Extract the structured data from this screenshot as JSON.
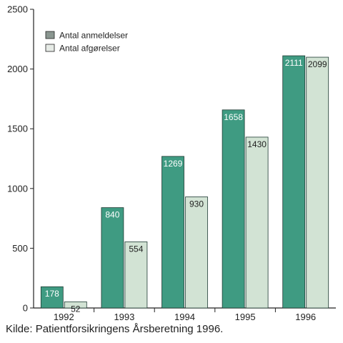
{
  "chart_data": {
    "type": "bar",
    "categories": [
      "1992",
      "1993",
      "1994",
      "1995",
      "1996"
    ],
    "series": [
      {
        "name": "Antal anmeldelser",
        "values": [
          178,
          840,
          1269,
          1658,
          2111
        ],
        "color": "#3f9b82",
        "label_color": "#ffffff"
      },
      {
        "name": "Antal afgørelser",
        "values": [
          52,
          554,
          930,
          1430,
          2099
        ],
        "color": "#d2e3d4",
        "label_color": "#222222"
      }
    ],
    "ylim": [
      0,
      2500
    ],
    "yticks": [
      0,
      500,
      1000,
      1500,
      2000,
      2500
    ],
    "grid": false,
    "legend_position": "top-left",
    "data_labels": true
  },
  "source_note": "Kilde: Patientforsikringens Årsberetning 1996."
}
